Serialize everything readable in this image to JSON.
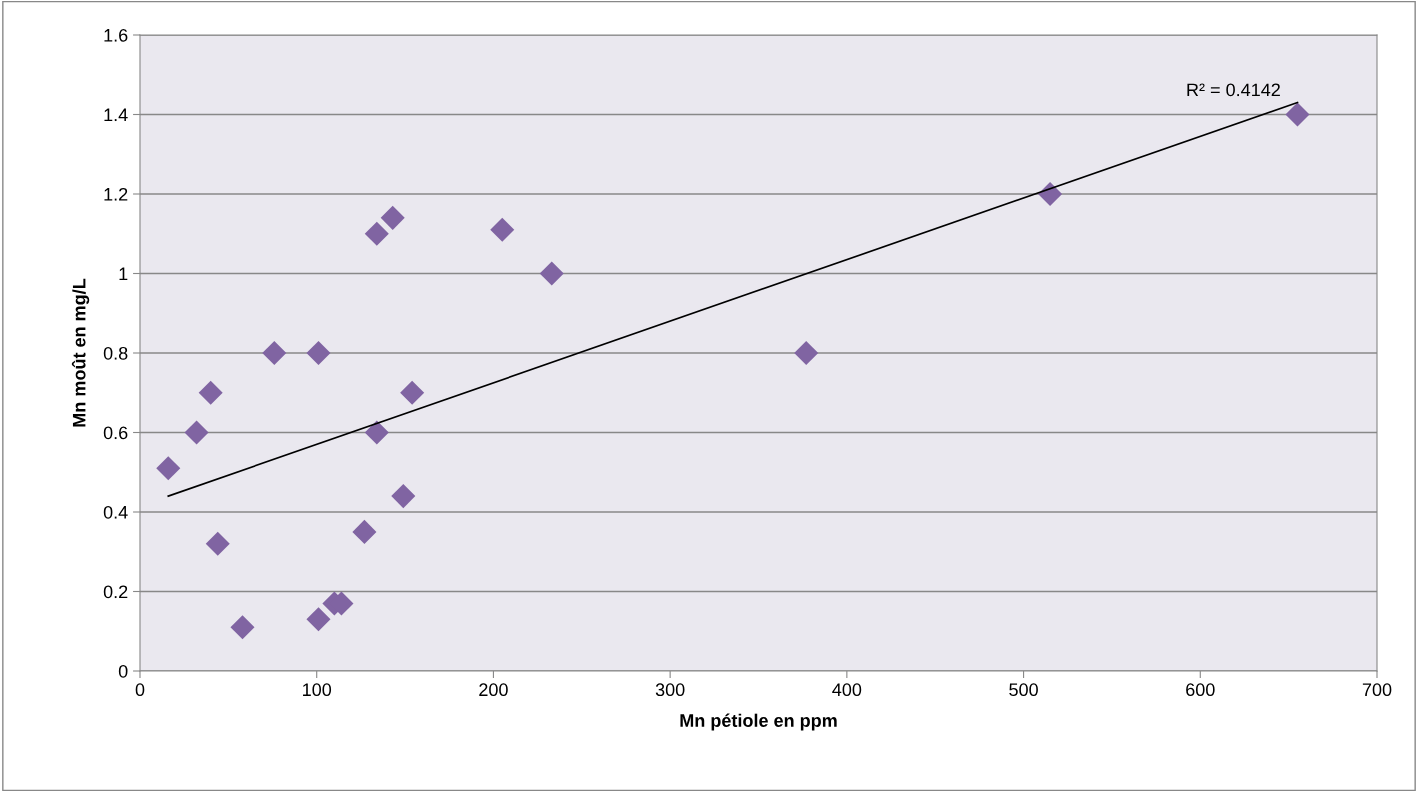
{
  "chart_data": {
    "type": "scatter",
    "xlabel": "Mn pétiole en ppm",
    "ylabel": "Mn moût en mg/L",
    "xlim": [
      0,
      700
    ],
    "xticks": [
      0,
      100,
      200,
      300,
      400,
      500,
      600,
      700
    ],
    "ylim": [
      0,
      1.6
    ],
    "yticks": [
      0,
      {
        "value": 0.2,
        "label": "0.2"
      },
      {
        "value": 0.4,
        "label": "0.4"
      },
      {
        "value": 0.6,
        "label": "0.6"
      },
      {
        "value": 0.8,
        "label": "0.8"
      },
      1,
      {
        "value": 1.2,
        "label": "1.2"
      },
      {
        "value": 1.4,
        "label": "1.4"
      },
      {
        "value": 1.6,
        "label": "1.6"
      }
    ],
    "grid": "y",
    "legend": false,
    "series": [
      {
        "marker": "diamond",
        "color": "#8064a2",
        "x": [
          16,
          32,
          40,
          44,
          58,
          76,
          101,
          101,
          110,
          114,
          127,
          134,
          134,
          143,
          149,
          154,
          205,
          233,
          377,
          515,
          655
        ],
        "values": [
          0.51,
          0.6,
          0.7,
          0.32,
          0.11,
          0.8,
          0.8,
          0.13,
          0.17,
          0.17,
          0.35,
          1.1,
          0.6,
          1.14,
          0.44,
          0.7,
          1.11,
          1.0,
          0.8,
          1.2,
          1.4
        ]
      },
      {
        "type": "line",
        "color": "#000000",
        "x": [
          16,
          655
        ],
        "values": [
          0.44,
          1.43
        ]
      }
    ],
    "annotations": [
      {
        "text": "R² = 0.4142",
        "x": 655,
        "y": 1.43
      }
    ]
  }
}
